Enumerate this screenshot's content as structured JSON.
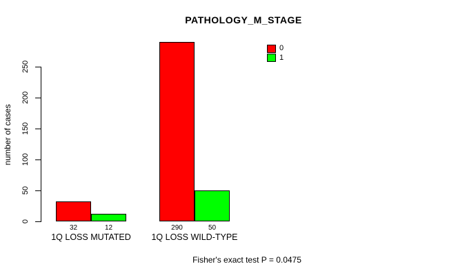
{
  "title": "PATHOLOGY_M_STAGE",
  "annotation": "Fisher's exact test P = 0.0475",
  "chart_data": {
    "type": "bar",
    "title": "PATHOLOGY_M_STAGE",
    "xlabel": "",
    "ylabel": "number of cases",
    "categories": [
      "1Q LOSS MUTATED",
      "1Q LOSS WILD-TYPE"
    ],
    "series": [
      {
        "name": "0",
        "color": "#FF0000",
        "values": [
          32,
          290
        ]
      },
      {
        "name": "1",
        "color": "#00FF00",
        "values": [
          12,
          50
        ]
      }
    ],
    "yticks": [
      0,
      50,
      100,
      150,
      200,
      250
    ],
    "ylim": [
      0,
      250
    ],
    "grid": false,
    "legend_position": "top-right",
    "bar_value_labels_shown": true,
    "annotation": "Fisher's exact test P = 0.0475",
    "axis_color": "#000000",
    "background_color": "#FFFFFF"
  }
}
